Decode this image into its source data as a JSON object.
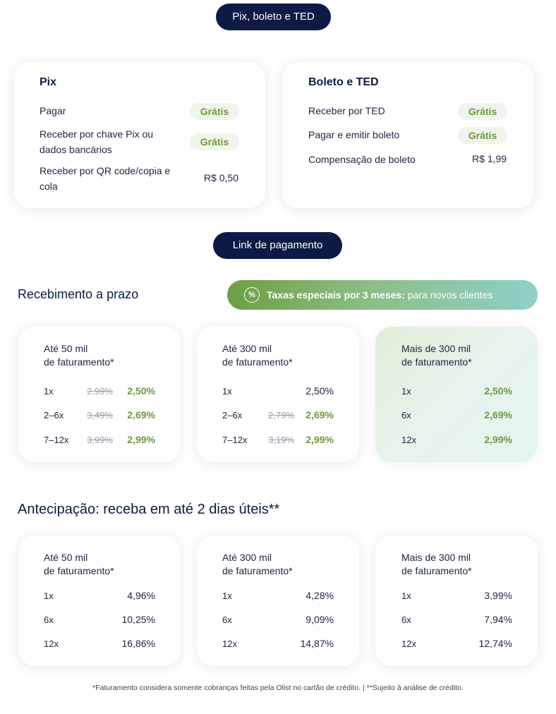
{
  "pix_section": {
    "pill": "Pix, boleto e TED",
    "pix_card": {
      "title": "Pix",
      "rows": [
        {
          "label": "Pagar",
          "value": "Grátis"
        },
        {
          "label": "Receber por chave Pix ou dados bancários",
          "value": "Grátis"
        },
        {
          "label": "Receber por QR code/copia e cola",
          "value": "R$ 0,50"
        }
      ]
    },
    "boleto_card": {
      "title": "Boleto e TED",
      "rows": [
        {
          "label": "Receber por TED",
          "value": "Grátis"
        },
        {
          "label": "Pagar e emitir boleto",
          "value": "Grátis"
        },
        {
          "label": "Compensação de boleto",
          "value": "R$ 1,99"
        }
      ]
    }
  },
  "link_section": {
    "pill": "Link de pagamento",
    "recebimento_title": "Recebimento a prazo",
    "promo": {
      "icon": "percent-badge-icon",
      "strong": "Taxas especiais por 3 meses:",
      "text": "para novos clientes"
    },
    "recebimento_cards": [
      {
        "title_line1": "Até 50 mil",
        "title_line2": "de faturamento*",
        "rows": [
          {
            "label": "1x",
            "old": "2,99%",
            "new": "2,50%"
          },
          {
            "label": "2–6x",
            "old": "3,49%",
            "new": "2,69%"
          },
          {
            "label": "7–12x",
            "old": "3,99%",
            "new": "2,99%"
          }
        ]
      },
      {
        "title_line1": "Até 300 mil",
        "title_line2": "de faturamento*",
        "rows": [
          {
            "label": "1x",
            "old": "",
            "new": "2,50%"
          },
          {
            "label": "2–6x",
            "old": "2,79%",
            "new": "2,69%"
          },
          {
            "label": "7–12x",
            "old": "3,19%",
            "new": "2,99%"
          }
        ]
      },
      {
        "title_line1": "Mais de 300 mil",
        "title_line2": "de faturamento*",
        "rows": [
          {
            "label": "1x",
            "old": "",
            "new": "2,50%"
          },
          {
            "label": "6x",
            "old": "",
            "new": "2,69%"
          },
          {
            "label": "12x",
            "old": "",
            "new": "2,99%"
          }
        ]
      }
    ],
    "antecipacao_title": "Antecipação: receba em até 2 dias úteis**",
    "antecipacao_cards": [
      {
        "title_line1": "Até 50 mil",
        "title_line2": "de faturamento*",
        "rows": [
          {
            "label": "1x",
            "value": "4,96%"
          },
          {
            "label": "6x",
            "value": "10,25%"
          },
          {
            "label": "12x",
            "value": "16,86%"
          }
        ]
      },
      {
        "title_line1": "Até 300 mil",
        "title_line2": "de faturamento*",
        "rows": [
          {
            "label": "1x",
            "value": "4,28%"
          },
          {
            "label": "6x",
            "value": "9,09%"
          },
          {
            "label": "12x",
            "value": "14,87%"
          }
        ]
      },
      {
        "title_line1": "Mais de 300 mil",
        "title_line2": "de faturamento*",
        "rows": [
          {
            "label": "1x",
            "value": "3,99%"
          },
          {
            "label": "6x",
            "value": "7,94%"
          },
          {
            "label": "12x",
            "value": "12,74%"
          }
        ]
      }
    ]
  },
  "footnote": "*Faturamento considera somente cobranças feitas pela Olist no cartão de crédito.  |  **Sujeito à análise de crédito.",
  "colors": {
    "navy": "#0c1a45",
    "green": "#6e9a3e",
    "badge_bg": "#f0f4ec",
    "strike_gray": "#9aa0ad"
  }
}
